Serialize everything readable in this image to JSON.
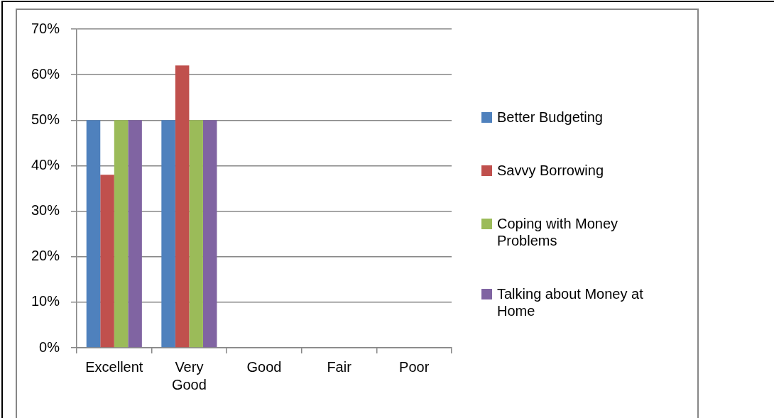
{
  "chart_data": {
    "type": "bar",
    "categories": [
      "Excellent",
      "Very Good",
      "Good",
      "Fair",
      "Poor"
    ],
    "series": [
      {
        "name": "Better Budgeting",
        "color": "#4f81bd",
        "values": [
          50,
          50,
          0,
          0,
          0
        ]
      },
      {
        "name": "Savvy Borrowing",
        "color": "#c0504d",
        "values": [
          38,
          62,
          0,
          0,
          0
        ]
      },
      {
        "name": "Coping with Money Problems",
        "color": "#9bbb59",
        "values": [
          50,
          50,
          0,
          0,
          0
        ]
      },
      {
        "name": "Talking about Money at Home",
        "color": "#8064a2",
        "values": [
          50,
          50,
          0,
          0,
          0
        ]
      }
    ],
    "ylim": [
      0,
      70
    ],
    "yticks": [
      {
        "value": 0,
        "label": "0%"
      },
      {
        "value": 10,
        "label": "10%"
      },
      {
        "value": 20,
        "label": "20%"
      },
      {
        "value": 30,
        "label": "30%"
      },
      {
        "value": 40,
        "label": "40%"
      },
      {
        "value": 50,
        "label": "50%"
      },
      {
        "value": 60,
        "label": "60%"
      },
      {
        "value": 70,
        "label": "70%"
      }
    ],
    "grid": "y",
    "legend": "right"
  }
}
